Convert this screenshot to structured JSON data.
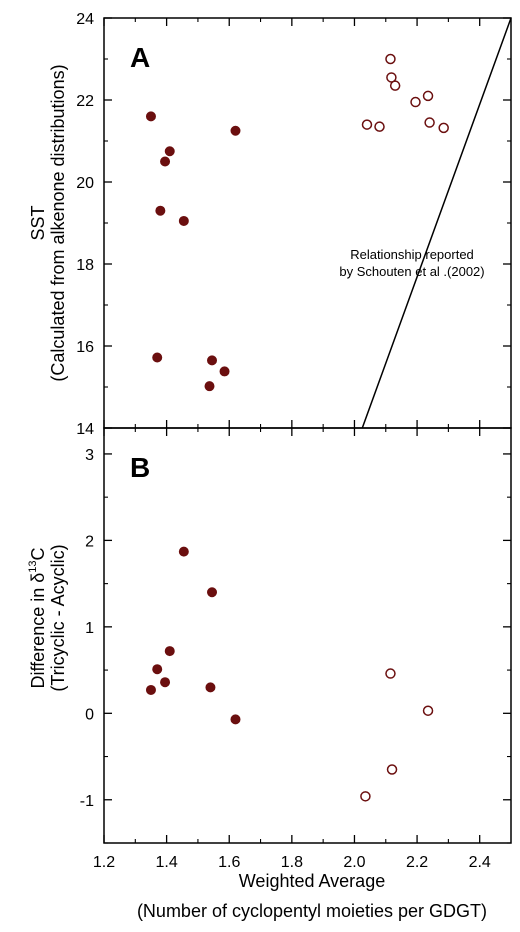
{
  "colors": {
    "marker": "#6b0f0f",
    "axis": "#000000"
  },
  "chart_data": [
    {
      "type": "scatter",
      "panel_label": "A",
      "ylabel_line1": "SST",
      "ylabel_line2": "(Calculated from alkenone distributions)",
      "xlim": [
        1.2,
        2.5
      ],
      "ylim": [
        14,
        24
      ],
      "yticks": [
        "14",
        "16",
        "18",
        "20",
        "22",
        "24"
      ],
      "series": [
        {
          "marker": "filled",
          "points": [
            [
              1.35,
              21.6
            ],
            [
              1.41,
              20.75
            ],
            [
              1.395,
              20.5
            ],
            [
              1.62,
              21.25
            ],
            [
              1.38,
              19.3
            ],
            [
              1.455,
              19.05
            ],
            [
              1.37,
              15.72
            ],
            [
              1.545,
              15.65
            ],
            [
              1.585,
              15.38
            ],
            [
              1.537,
              15.02
            ]
          ]
        },
        {
          "marker": "open",
          "points": [
            [
              2.115,
              23.0
            ],
            [
              2.118,
              22.55
            ],
            [
              2.13,
              22.35
            ],
            [
              2.235,
              22.1
            ],
            [
              2.04,
              21.4
            ],
            [
              2.08,
              21.35
            ],
            [
              2.195,
              21.95
            ],
            [
              2.24,
              21.45
            ],
            [
              2.285,
              21.32
            ]
          ]
        }
      ],
      "reference_line": {
        "label_line1": "Relationship reported",
        "label_line2": "by Schouten et al .(2002)",
        "points": [
          [
            2.025,
            14.0
          ],
          [
            2.5,
            24.0
          ]
        ]
      }
    },
    {
      "type": "scatter",
      "panel_label": "B",
      "ylabel_line1": "Difference in δ",
      "ylabel_sup": "13",
      "ylabel_after_sup": "C",
      "ylabel_line2": "(Tricyclic - Acyclic)",
      "xlabel_line1": "Weighted Average",
      "xlabel_line2": "(Number of cyclopentyl moieties per GDGT)",
      "xlim": [
        1.2,
        2.5
      ],
      "ylim": [
        -1.5,
        3.3
      ],
      "xticks": [
        "1.2",
        "1.4",
        "1.6",
        "1.8",
        "2.0",
        "2.2",
        "2.4"
      ],
      "yticks": [
        "-1",
        "0",
        "1",
        "2",
        "3"
      ],
      "series": [
        {
          "marker": "filled",
          "points": [
            [
              1.455,
              1.87
            ],
            [
              1.545,
              1.4
            ],
            [
              1.41,
              0.72
            ],
            [
              1.37,
              0.51
            ],
            [
              1.395,
              0.36
            ],
            [
              1.35,
              0.27
            ],
            [
              1.54,
              0.3
            ],
            [
              1.62,
              -0.07
            ]
          ]
        },
        {
          "marker": "open",
          "points": [
            [
              2.115,
              0.46
            ],
            [
              2.235,
              0.03
            ],
            [
              2.12,
              -0.65
            ],
            [
              2.035,
              -0.96
            ]
          ]
        }
      ]
    }
  ]
}
